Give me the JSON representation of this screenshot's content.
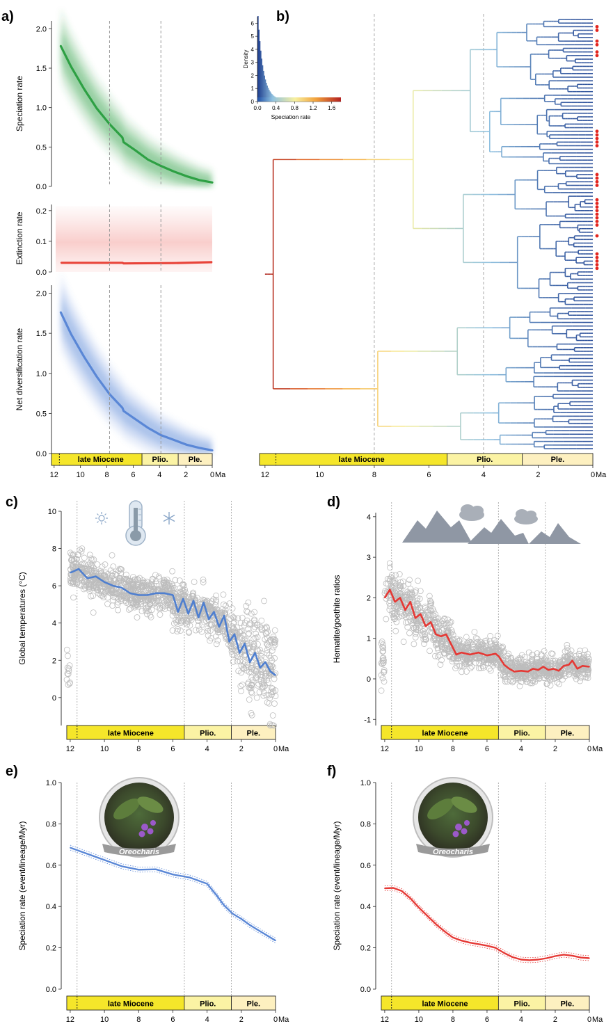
{
  "panels": {
    "a": {
      "label": "a)"
    },
    "b": {
      "label": "b)"
    },
    "c": {
      "label": "c)"
    },
    "d": {
      "label": "d)"
    },
    "e": {
      "label": "e)"
    },
    "f": {
      "label": "f)"
    }
  },
  "timescale": {
    "epochs": [
      {
        "name": "late Miocene",
        "from": 11.6,
        "to": 5.33,
        "color": "#f5e62a"
      },
      {
        "name": "Plio.",
        "from": 5.33,
        "to": 2.58,
        "color": "#fbf3a4"
      },
      {
        "name": "Ple.",
        "from": 2.58,
        "to": 0,
        "color": "#fdf0c0"
      }
    ],
    "ticks": [
      "12",
      "10",
      "8",
      "6",
      "4",
      "2",
      "0"
    ],
    "unit": "Ma"
  },
  "photo_label": "Oreocharis",
  "inset": {
    "ylabel": "Density",
    "xlabel": "Speciation rate",
    "xticks": [
      "0.0",
      "0.4",
      "0.8",
      "1.2",
      "1.6"
    ],
    "yticks": [
      "0",
      "1",
      "2",
      "3",
      "4",
      "5",
      "6"
    ]
  },
  "chart_data": [
    {
      "id": "a1",
      "type": "line",
      "ylabel": "Speciation rate",
      "ylim": [
        0,
        2.1
      ],
      "yticks": [
        "0.0",
        "0.5",
        "1.0",
        "1.5",
        "2.0"
      ],
      "color": "#2ea044",
      "x": [
        11.8,
        11,
        10,
        9,
        8,
        7.0,
        6.9,
        6,
        5,
        4,
        3,
        2,
        1,
        0
      ],
      "y": [
        1.78,
        1.52,
        1.24,
        0.99,
        0.79,
        0.62,
        0.56,
        0.46,
        0.34,
        0.26,
        0.19,
        0.13,
        0.08,
        0.05
      ]
    },
    {
      "id": "a2",
      "type": "line",
      "ylabel": "Extinction rate",
      "ylim": [
        0,
        0.22
      ],
      "yticks": [
        "0.0",
        "0.1",
        "0.2"
      ],
      "color": "#e8443a",
      "x": [
        11.8,
        7,
        6.9,
        3,
        0
      ],
      "y": [
        0.03,
        0.03,
        0.028,
        0.029,
        0.032
      ]
    },
    {
      "id": "a3",
      "type": "line",
      "ylabel": "Net diversification rate",
      "ylim": [
        0,
        2.1
      ],
      "yticks": [
        "0.0",
        "0.5",
        "1.0",
        "1.5",
        "2.0"
      ],
      "color": "#5a87d6",
      "x": [
        11.8,
        11,
        10,
        9,
        8,
        7.0,
        6.9,
        6,
        5,
        4,
        3,
        2,
        1,
        0
      ],
      "y": [
        1.76,
        1.49,
        1.21,
        0.96,
        0.74,
        0.57,
        0.53,
        0.43,
        0.32,
        0.23,
        0.17,
        0.11,
        0.07,
        0.04
      ]
    },
    {
      "id": "c",
      "type": "scatter",
      "ylabel": "Global temperatures (°C)",
      "ylim": [
        -1.5,
        10
      ],
      "yticks": [
        "0",
        "2",
        "4",
        "6",
        "8",
        "10"
      ],
      "color": "#4f7fcf",
      "x": [
        12,
        11.5,
        11,
        10.5,
        10,
        9.5,
        9,
        8.5,
        8,
        7.5,
        7,
        6.5,
        6,
        5.7,
        5.4,
        5.1,
        4.8,
        4.5,
        4.2,
        3.9,
        3.6,
        3.3,
        3.0,
        2.7,
        2.4,
        2.1,
        1.8,
        1.5,
        1.2,
        0.9,
        0.6,
        0.3,
        0
      ],
      "y": [
        6.7,
        6.9,
        6.4,
        6.5,
        6.2,
        6.0,
        5.9,
        5.6,
        5.5,
        5.5,
        5.6,
        5.6,
        5.5,
        4.6,
        5.3,
        4.5,
        5.2,
        4.3,
        5.1,
        4.2,
        4.6,
        3.8,
        4.4,
        3.0,
        3.4,
        2.4,
        2.9,
        1.9,
        2.4,
        1.6,
        1.9,
        1.4,
        1.2
      ]
    },
    {
      "id": "d",
      "type": "scatter",
      "ylabel": "Hematite/goethite ratios",
      "ylim": [
        -1.15,
        4.1
      ],
      "yticks": [
        "-1",
        "0",
        "1",
        "2",
        "3",
        "4"
      ],
      "color": "#e53935",
      "x": [
        12,
        11.7,
        11.4,
        11.1,
        10.8,
        10.5,
        10.2,
        9.9,
        9.6,
        9.3,
        9.0,
        8.7,
        8.4,
        8.1,
        7.8,
        7.5,
        7.0,
        6.5,
        6.0,
        5.5,
        5.3,
        5.0,
        4.7,
        4.4,
        4.0,
        3.6,
        3.3,
        3.0,
        2.7,
        2.4,
        2.1,
        1.8,
        1.5,
        1.2,
        1.0,
        0.7,
        0.4,
        0
      ],
      "y": [
        2.0,
        2.2,
        1.9,
        2.0,
        1.7,
        1.9,
        1.5,
        1.6,
        1.3,
        1.4,
        1.1,
        1.05,
        1.1,
        0.85,
        0.6,
        0.65,
        0.6,
        0.65,
        0.58,
        0.62,
        0.55,
        0.35,
        0.25,
        0.18,
        0.2,
        0.18,
        0.25,
        0.22,
        0.3,
        0.22,
        0.25,
        0.2,
        0.32,
        0.35,
        0.45,
        0.25,
        0.32,
        0.3
      ]
    },
    {
      "id": "e",
      "type": "line",
      "ylabel": "Speciation rate (event/lineage/Myr)",
      "ylim": [
        0,
        1.0
      ],
      "yticks": [
        "0.0",
        "0.2",
        "0.4",
        "0.6",
        "0.8",
        "1.0"
      ],
      "color": "#5a87d6",
      "x": [
        12,
        11,
        10,
        9,
        8,
        7,
        6,
        5,
        4,
        3.5,
        3,
        2.5,
        2,
        1.5,
        1,
        0.5,
        0
      ],
      "y": [
        0.685,
        0.655,
        0.625,
        0.595,
        0.578,
        0.58,
        0.555,
        0.54,
        0.51,
        0.46,
        0.405,
        0.365,
        0.34,
        0.31,
        0.285,
        0.26,
        0.235
      ]
    },
    {
      "id": "f",
      "type": "line",
      "ylabel": "Speciation rate (event/lineage/Myr)",
      "ylim": [
        0,
        1.0
      ],
      "yticks": [
        "0.0",
        "0.2",
        "0.4",
        "0.6",
        "0.8",
        "1.0"
      ],
      "color": "#e53935",
      "x": [
        12,
        11.5,
        11,
        10.5,
        10,
        9.5,
        9,
        8.5,
        8,
        7.5,
        7,
        6.5,
        6,
        5.5,
        5,
        4.5,
        4,
        3.5,
        3,
        2.5,
        2,
        1.5,
        1,
        0.5,
        0
      ],
      "y": [
        0.488,
        0.49,
        0.475,
        0.44,
        0.395,
        0.355,
        0.315,
        0.28,
        0.25,
        0.235,
        0.225,
        0.218,
        0.21,
        0.2,
        0.175,
        0.155,
        0.143,
        0.14,
        0.143,
        0.15,
        0.16,
        0.167,
        0.162,
        0.153,
        0.15
      ]
    }
  ]
}
